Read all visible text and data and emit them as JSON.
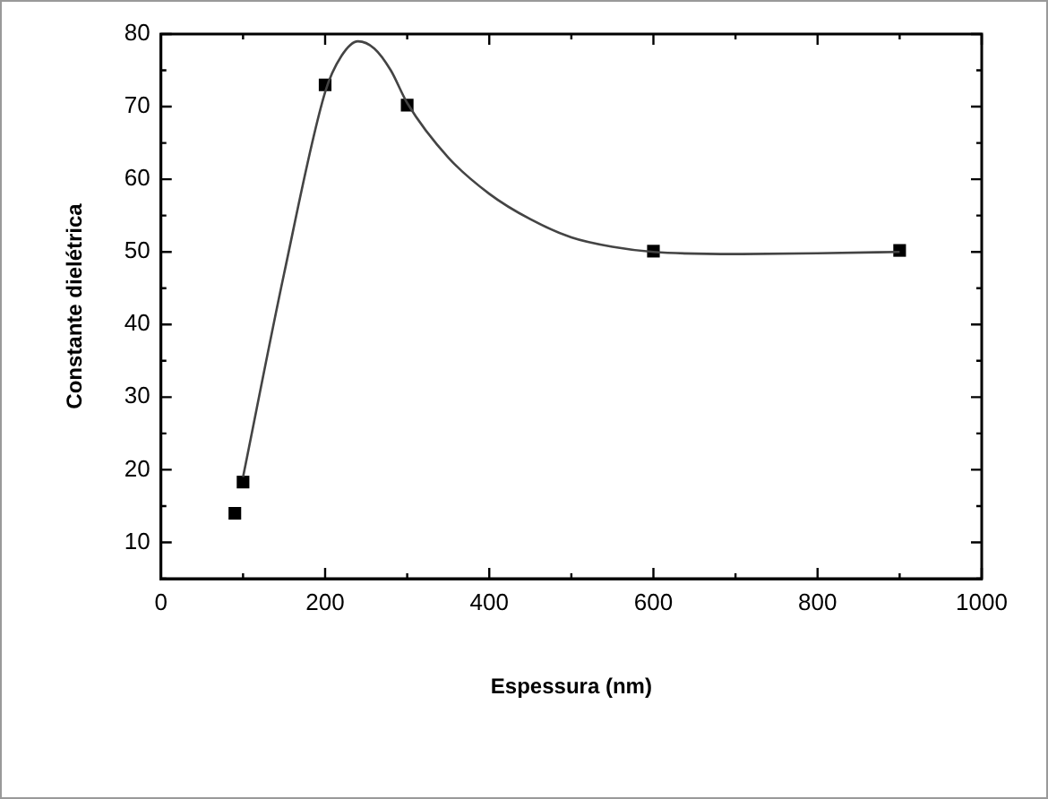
{
  "chart_data": {
    "type": "scatter",
    "xlabel": "Espessura (nm)",
    "ylabel": "Constante dielétrica",
    "xlim": [
      0,
      1000
    ],
    "ylim": [
      5,
      80
    ],
    "xticks": [
      0,
      {
        "value": 100,
        "label": null
      },
      200,
      {
        "value": 300,
        "label": null
      },
      400,
      {
        "value": 500,
        "label": null
      },
      600,
      {
        "value": 700,
        "label": null
      },
      800,
      {
        "value": 900,
        "label": null
      },
      1000
    ],
    "yticks": [
      {
        "value": 5,
        "label": null
      },
      10,
      {
        "value": 15,
        "label": null
      },
      20,
      {
        "value": 25,
        "label": null
      },
      30,
      {
        "value": 35,
        "label": null
      },
      40,
      {
        "value": 45,
        "label": null
      },
      50,
      {
        "value": 55,
        "label": null
      },
      60,
      {
        "value": 65,
        "label": null
      },
      70,
      {
        "value": 75,
        "label": null
      },
      80
    ],
    "grid": false,
    "legend": false,
    "marker": "square",
    "series": [
      {
        "type": "line",
        "color": "#444444",
        "marker": "none",
        "line_style": "solid",
        "x": [
          100,
          150,
          200,
          220,
          240,
          260,
          280,
          300,
          350,
          400,
          450,
          500,
          550,
          600,
          700,
          800,
          900
        ],
        "values": [
          19,
          47,
          72,
          77,
          79,
          78,
          75,
          70.5,
          63,
          58,
          54.5,
          52,
          50.7,
          50,
          49.7,
          49.8,
          50
        ]
      },
      {
        "type": "scatter",
        "color": "#000000",
        "x": [
          90,
          100,
          200,
          300,
          600,
          900
        ],
        "values": [
          14,
          18.3,
          73,
          70.2,
          50.1,
          50.2
        ]
      }
    ]
  }
}
